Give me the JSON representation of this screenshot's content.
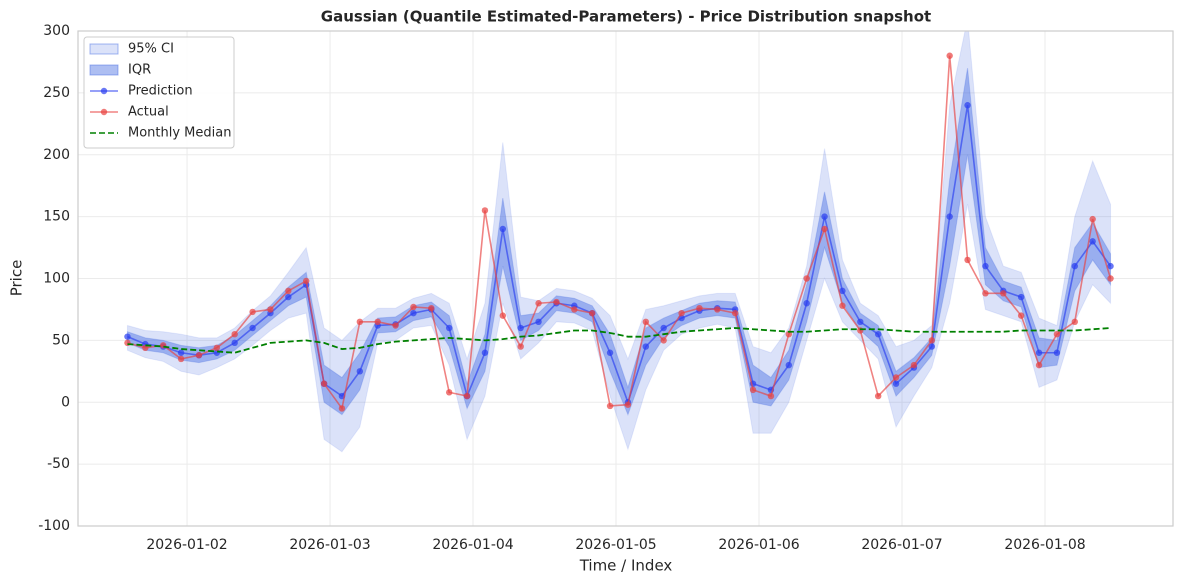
{
  "chart_data": {
    "type": "line",
    "title": "Gaussian (Quantile Estimated-Parameters) - Price Distribution snapshot",
    "x_label": "Time / Index",
    "y_label": "Price",
    "x": [
      "2026-01-01T14:00",
      "2026-01-01T17:00",
      "2026-01-01T20:00",
      "2026-01-01T23:00",
      "2026-01-02T02:00",
      "2026-01-02T05:00",
      "2026-01-02T08:00",
      "2026-01-02T11:00",
      "2026-01-02T14:00",
      "2026-01-02T17:00",
      "2026-01-02T20:00",
      "2026-01-02T23:00",
      "2026-01-03T02:00",
      "2026-01-03T05:00",
      "2026-01-03T08:00",
      "2026-01-03T11:00",
      "2026-01-03T14:00",
      "2026-01-03T17:00",
      "2026-01-03T20:00",
      "2026-01-03T23:00",
      "2026-01-04T02:00",
      "2026-01-04T05:00",
      "2026-01-04T08:00",
      "2026-01-04T11:00",
      "2026-01-04T14:00",
      "2026-01-04T17:00",
      "2026-01-04T20:00",
      "2026-01-04T23:00",
      "2026-01-05T02:00",
      "2026-01-05T05:00",
      "2026-01-05T08:00",
      "2026-01-05T11:00",
      "2026-01-05T14:00",
      "2026-01-05T17:00",
      "2026-01-05T20:00",
      "2026-01-05T23:00",
      "2026-01-06T02:00",
      "2026-01-06T05:00",
      "2026-01-06T08:00",
      "2026-01-06T11:00",
      "2026-01-06T14:00",
      "2026-01-06T17:00",
      "2026-01-06T20:00",
      "2026-01-06T23:00",
      "2026-01-07T02:00",
      "2026-01-07T05:00",
      "2026-01-07T08:00",
      "2026-01-07T11:00",
      "2026-01-07T14:00",
      "2026-01-07T17:00",
      "2026-01-07T20:00",
      "2026-01-07T23:00",
      "2026-01-08T02:00",
      "2026-01-08T05:00",
      "2026-01-08T08:00",
      "2026-01-08T11:00"
    ],
    "xlim": [
      "2026-01-01T05:42",
      "2026-01-08T21:29"
    ],
    "xticks": [
      "2026-01-02",
      "2026-01-03",
      "2026-01-04",
      "2026-01-05",
      "2026-01-06",
      "2026-01-07",
      "2026-01-08"
    ],
    "ylim": [
      -100,
      300
    ],
    "yticks": [
      -100,
      -50,
      0,
      50,
      100,
      150,
      200,
      250,
      300
    ],
    "grid": true,
    "legend": "upper left",
    "series": [
      {
        "name": "95% CI",
        "kind": "band",
        "color": "#4a6fe3",
        "opacity": 0.2,
        "lower": [
          42,
          36,
          33,
          25,
          22,
          28,
          35,
          46,
          58,
          68,
          72,
          -30,
          -40,
          -20,
          48,
          50,
          60,
          62,
          30,
          -30,
          5,
          80,
          35,
          48,
          65,
          64,
          58,
          5,
          -38,
          10,
          42,
          55,
          60,
          63,
          60,
          -25,
          -25,
          0,
          50,
          100,
          65,
          50,
          35,
          -20,
          5,
          28,
          80,
          160,
          75,
          70,
          65,
          12,
          18,
          65,
          95,
          80
        ],
        "upper": [
          62,
          58,
          57,
          55,
          52,
          52,
          60,
          74,
          86,
          105,
          125,
          60,
          50,
          65,
          76,
          76,
          84,
          88,
          80,
          35,
          80,
          210,
          85,
          82,
          92,
          90,
          84,
          70,
          35,
          75,
          78,
          82,
          86,
          88,
          88,
          45,
          40,
          60,
          110,
          205,
          115,
          80,
          70,
          45,
          50,
          62,
          240,
          310,
          150,
          110,
          105,
          68,
          62,
          150,
          195,
          160
        ]
      },
      {
        "name": "IQR",
        "kind": "band",
        "color": "#4a6fe3",
        "opacity": 0.45,
        "lower": [
          48,
          42,
          40,
          34,
          32,
          35,
          42,
          54,
          66,
          78,
          85,
          0,
          -10,
          10,
          56,
          57,
          66,
          69,
          45,
          -5,
          25,
          110,
          50,
          58,
          74,
          72,
          65,
          25,
          -10,
          30,
          52,
          62,
          68,
          70,
          68,
          0,
          -3,
          18,
          65,
          125,
          80,
          58,
          45,
          5,
          20,
          38,
          110,
          200,
          95,
          82,
          77,
          28,
          30,
          90,
          115,
          95
        ],
        "upper": [
          57,
          52,
          50,
          46,
          44,
          46,
          54,
          66,
          78,
          93,
          105,
          30,
          20,
          40,
          68,
          69,
          78,
          81,
          70,
          15,
          55,
          165,
          70,
          72,
          86,
          84,
          78,
          55,
          12,
          60,
          68,
          74,
          80,
          82,
          81,
          30,
          20,
          42,
          95,
          170,
          100,
          72,
          62,
          25,
          36,
          52,
          180,
          270,
          125,
          98,
          93,
          52,
          50,
          125,
          145,
          120
        ]
      },
      {
        "name": "Prediction",
        "kind": "line",
        "color": "#2a3df0",
        "marker": true,
        "values": [
          53,
          47,
          45,
          40,
          38,
          40,
          48,
          60,
          72,
          85,
          95,
          15,
          5,
          25,
          62,
          63,
          72,
          75,
          60,
          5,
          40,
          140,
          60,
          65,
          80,
          78,
          72,
          40,
          0,
          45,
          60,
          68,
          74,
          76,
          75,
          15,
          10,
          30,
          80,
          150,
          90,
          65,
          55,
          15,
          28,
          45,
          150,
          240,
          110,
          90,
          85,
          40,
          40,
          110,
          130,
          110
        ]
      },
      {
        "name": "Actual",
        "kind": "line",
        "color": "#e8403f",
        "marker": true,
        "values": [
          48,
          44,
          46,
          35,
          38,
          44,
          55,
          73,
          75,
          90,
          98,
          15,
          -5,
          65,
          65,
          62,
          77,
          76,
          8,
          5,
          155,
          70,
          45,
          80,
          81,
          75,
          72,
          -3,
          -2,
          65,
          50,
          72,
          76,
          75,
          72,
          10,
          5,
          55,
          100,
          140,
          78,
          58,
          5,
          20,
          30,
          50,
          280,
          115,
          88,
          88,
          70,
          30,
          55,
          65,
          148,
          100
        ]
      },
      {
        "name": "Monthly Median",
        "kind": "line",
        "color": "#008000",
        "dashed": true,
        "values": [
          47,
          46,
          45,
          43,
          42,
          41,
          40,
          44,
          48,
          49,
          50,
          48,
          43,
          44,
          47,
          49,
          50,
          51,
          52,
          51,
          50,
          51,
          53,
          54,
          56,
          58,
          58,
          56,
          53,
          53,
          55,
          57,
          58,
          59,
          60,
          59,
          58,
          57,
          57,
          58,
          59,
          59,
          59,
          58,
          57,
          57,
          57,
          57,
          57,
          57,
          58,
          58,
          58,
          58,
          59,
          60
        ]
      }
    ]
  }
}
